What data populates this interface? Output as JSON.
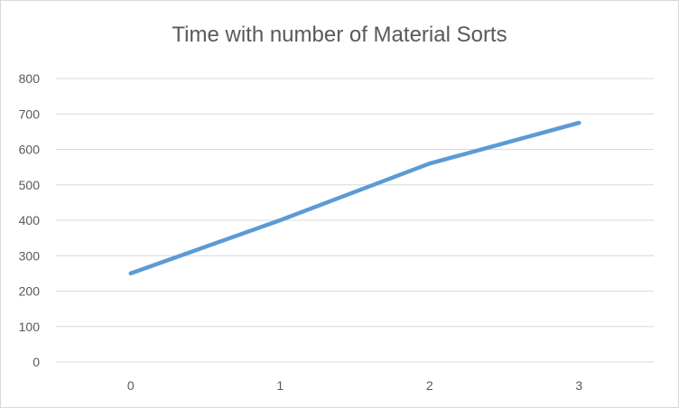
{
  "chart_data": {
    "type": "line",
    "title": "Time with number of Material Sorts",
    "xlabel": "",
    "ylabel": "",
    "categories": [
      "0",
      "1",
      "2",
      "3"
    ],
    "x_ticks": [
      "0",
      "1",
      "2",
      "3"
    ],
    "y_ticks": [
      "0",
      "100",
      "200",
      "300",
      "400",
      "500",
      "600",
      "700",
      "800"
    ],
    "ylim": [
      0,
      800
    ],
    "grid": true,
    "legend": "none",
    "series": [
      {
        "values": [
          250,
          400,
          560,
          675
        ],
        "color": "#5b9bd5"
      }
    ]
  }
}
